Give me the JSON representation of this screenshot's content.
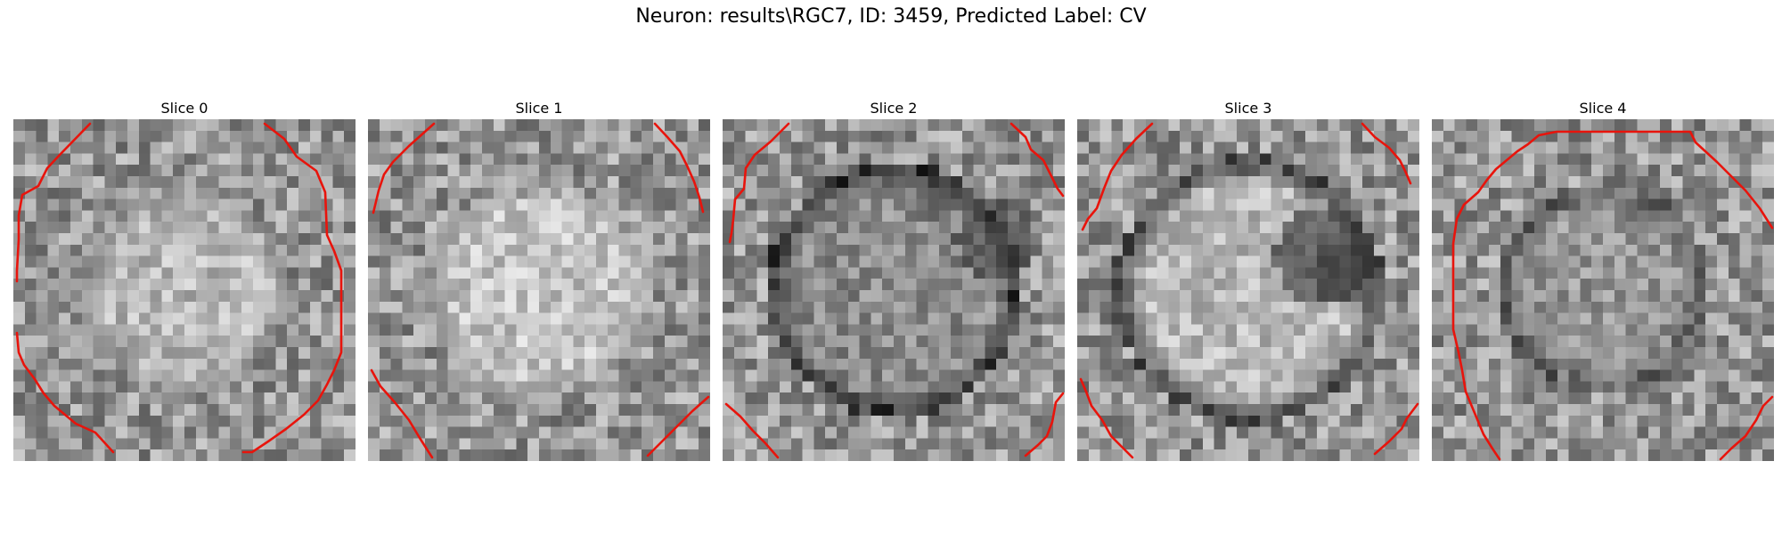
{
  "figure": {
    "suptitle": "Neuron: results\\RGC7, ID: 3459, Predicted Label: CV",
    "contour_color": "#e8140c",
    "colormap": "gray"
  },
  "slices": [
    {
      "title": "Slice 0"
    },
    {
      "title": "Slice 1"
    },
    {
      "title": "Slice 2"
    },
    {
      "title": "Slice 3"
    },
    {
      "title": "Slice 4"
    }
  ]
}
